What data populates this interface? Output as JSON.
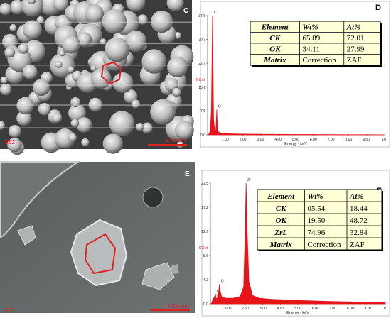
{
  "panels": {
    "c": {
      "label": "C",
      "detector": "SE2",
      "scale": "5.00 µm"
    },
    "e": {
      "label": "E",
      "detector": "SE1",
      "scale": "5.00 µm"
    }
  },
  "chart_data": [
    {
      "type": "line",
      "label": "D",
      "xlabel": "Energy - keV",
      "ylabel": "KCnt",
      "xlim": [
        0,
        10
      ],
      "ylim": [
        0,
        37.8
      ],
      "xticks": [
        {
          "value": 1,
          "label": "1.00"
        },
        {
          "value": 2,
          "label": "2.00"
        },
        {
          "value": 3,
          "label": "3.00"
        },
        {
          "value": 4,
          "label": "4.00"
        },
        {
          "value": 5,
          "label": "5.00"
        },
        {
          "value": 6,
          "label": "6.00"
        },
        {
          "value": 7,
          "label": "7.00"
        },
        {
          "value": 8,
          "label": "8.00"
        },
        {
          "value": 9,
          "label": "9.00"
        },
        {
          "value": 10,
          "label": "10"
        }
      ],
      "yticks": [
        {
          "value": 0,
          "label": "0.0"
        },
        7.6,
        15.1,
        22.7,
        30.3,
        37.8
      ],
      "x": [
        0.05,
        0.15,
        0.22,
        0.26,
        0.28,
        0.3,
        0.34,
        0.4,
        0.47,
        0.5,
        0.52,
        0.54,
        0.58,
        0.7,
        1,
        1.5,
        2,
        3,
        4,
        5,
        6,
        7,
        8,
        9,
        10
      ],
      "series": [
        {
          "name": "Spectrum",
          "color": "#e8141c",
          "values": [
            0,
            1.2,
            8,
            28,
            37.8,
            26,
            5,
            1.4,
            1.6,
            5,
            8,
            5,
            1.2,
            0.6,
            0.4,
            0.3,
            0.25,
            0.2,
            0.15,
            0.1,
            0.1,
            0.08,
            0.05,
            0.05,
            0.02
          ]
        }
      ],
      "annotations": [
        {
          "text": "C",
          "x": 0.28,
          "y": 37.8
        },
        {
          "text": "O",
          "x": 0.52,
          "y": 8
        }
      ],
      "table": {
        "header": [
          "Element",
          "Wt%",
          "At%"
        ],
        "rows": [
          [
            "CK",
            "65.89",
            "72.01"
          ],
          [
            "OK",
            "34.11",
            "27.99"
          ],
          [
            "Matrix",
            "Correction",
            "ZAF"
          ]
        ]
      }
    },
    {
      "type": "line",
      "label": "F",
      "xlabel": "Energy - keV",
      "ylabel": "KCnt",
      "xlim": [
        0,
        10
      ],
      "ylim": [
        0,
        21.5
      ],
      "xticks": [
        {
          "value": 1,
          "label": "1.00"
        },
        {
          "value": 2,
          "label": "2.00"
        },
        {
          "value": 3,
          "label": "3.00"
        },
        {
          "value": 4,
          "label": "4.00"
        },
        {
          "value": 5,
          "label": "5.00"
        },
        {
          "value": 6,
          "label": "6.00"
        },
        {
          "value": 7,
          "label": "7.00"
        },
        {
          "value": 8,
          "label": "8.00"
        },
        {
          "value": 9,
          "label": "9.00"
        },
        {
          "value": 10,
          "label": "10"
        }
      ],
      "yticks": [
        {
          "value": 0,
          "label": "0.0"
        },
        4.3,
        8.6,
        12.9,
        17.2,
        21.5
      ],
      "x": [
        0.05,
        0.15,
        0.22,
        0.28,
        0.34,
        0.42,
        0.48,
        0.52,
        0.56,
        0.65,
        0.9,
        1.3,
        1.7,
        1.9,
        1.98,
        2.04,
        2.1,
        2.2,
        2.4,
        2.8,
        3.5,
        5,
        7,
        9,
        10
      ],
      "series": [
        {
          "name": "Spectrum",
          "color": "#e8141c",
          "values": [
            0,
            0.8,
            1.2,
            1.6,
            0.9,
            1.1,
            2.4,
            3.5,
            2.2,
            1.2,
            1,
            1,
            1.3,
            3,
            12,
            21.5,
            13,
            4,
            1.5,
            1,
            0.8,
            0.6,
            0.4,
            0.3,
            0.2
          ]
        }
      ],
      "annotations": [
        {
          "text": "Zr",
          "x": 0.15,
          "y": 0.8
        },
        {
          "text": "C",
          "x": 0.28,
          "y": 1.6
        },
        {
          "text": "O",
          "x": 0.52,
          "y": 3.5
        },
        {
          "text": "Zr",
          "x": 2.04,
          "y": 21.5
        }
      ],
      "table": {
        "header": [
          "Element",
          "Wt%",
          "At%"
        ],
        "rows": [
          [
            "CK",
            "05.54",
            "18.44"
          ],
          [
            "OK",
            "19.50",
            "48.72"
          ],
          [
            "ZrL",
            "74.96",
            "32.84"
          ],
          [
            "Matrix",
            "Correction",
            "ZAF"
          ]
        ]
      }
    }
  ]
}
